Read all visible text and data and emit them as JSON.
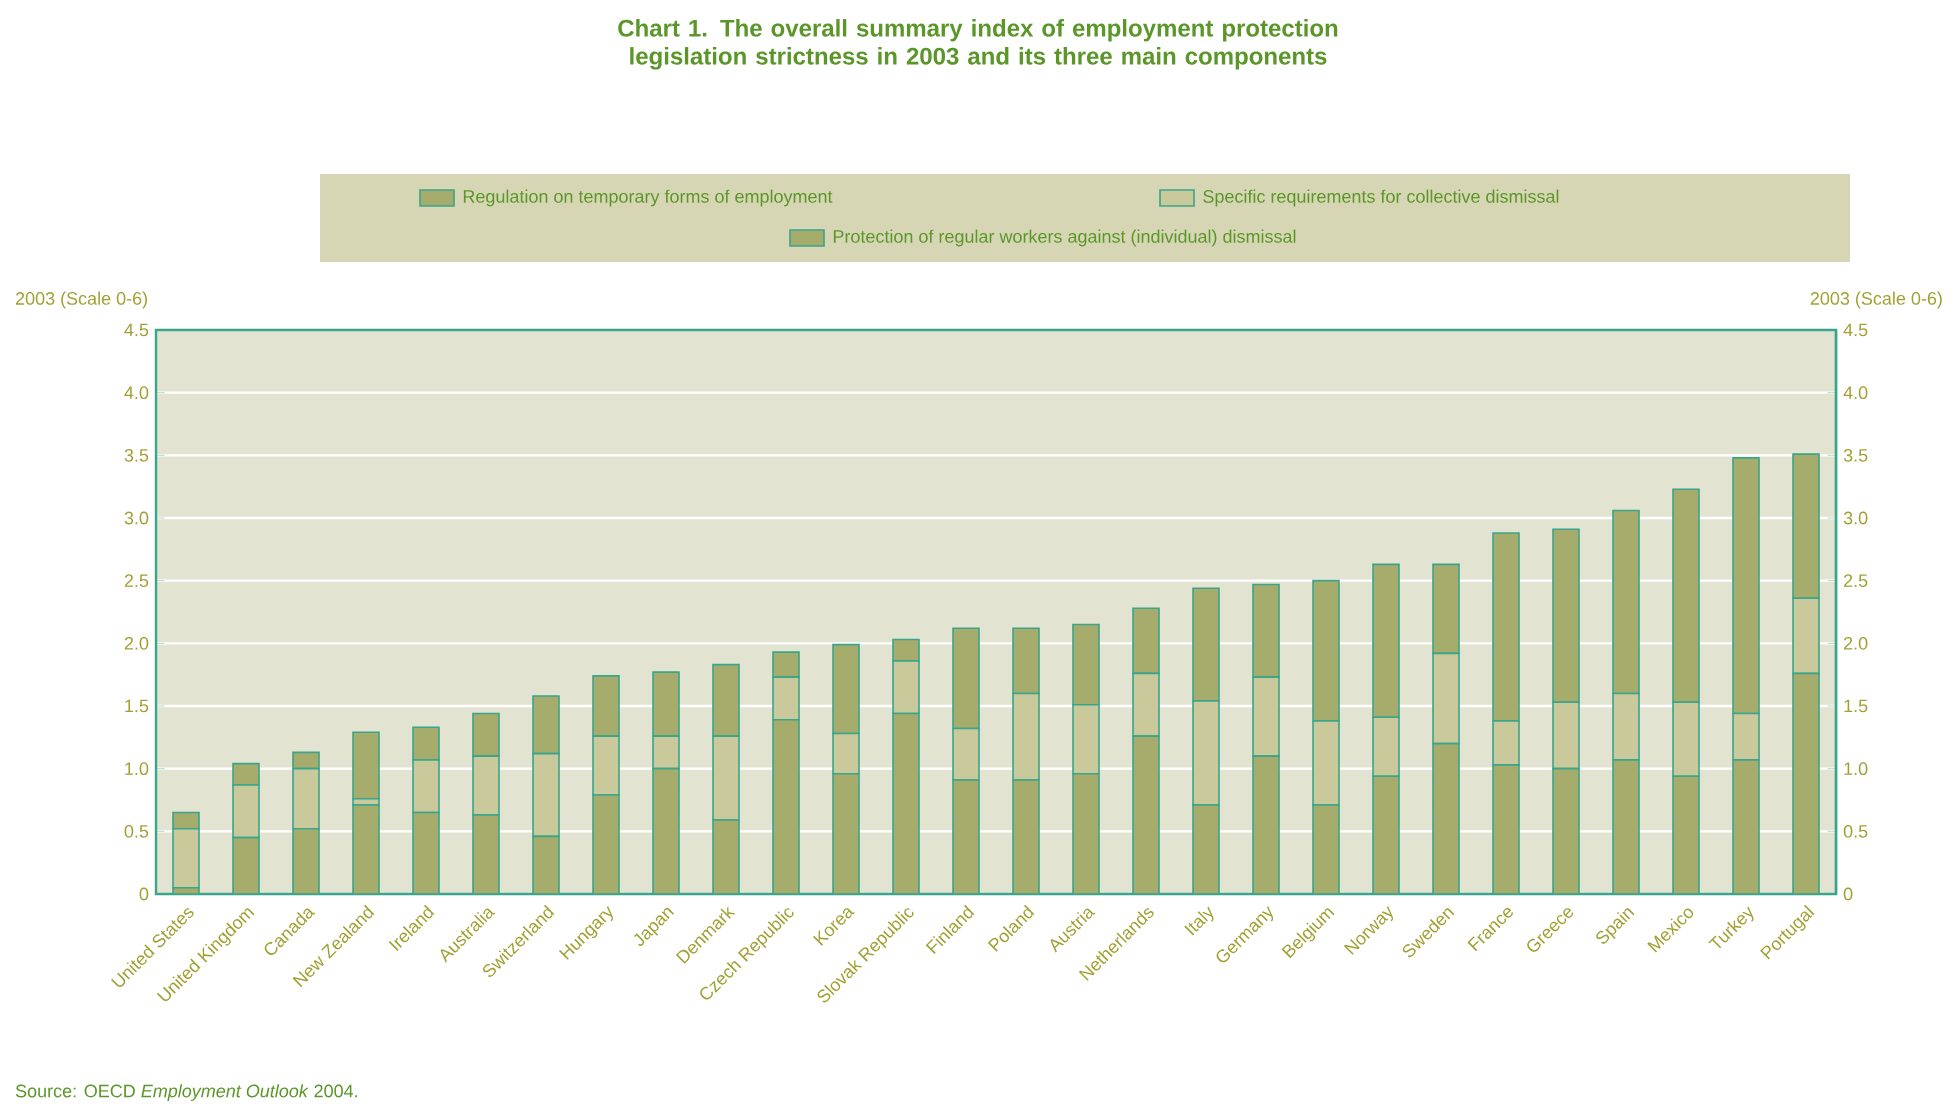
{
  "chart_data": {
    "type": "bar",
    "stacked": true,
    "title": "Chart 1. The overall summary index of employment protection legislation strictness in 2003 and its three main components",
    "ylabel": "2003 (Scale 0-6)",
    "y2label": "2003 (Scale 0-6)",
    "categories": [
      "United States",
      "United Kingdom",
      "Canada",
      "New Zealand",
      "Ireland",
      "Australia",
      "Switzerland",
      "Hungary",
      "Japan",
      "Denmark",
      "Czech Republic",
      "Korea",
      "Slovak Republic",
      "Finland",
      "Poland",
      "Austria",
      "Netherlands",
      "Italy",
      "Germany",
      "Belgium",
      "Norway",
      "Sweden",
      "France",
      "Greece",
      "Spain",
      "Mexico",
      "Turkey",
      "Portugal"
    ],
    "series": [
      {
        "name": "Protection of regular workers against (individual) dismissal",
        "color": "#a6ac6c",
        "values": [
          0.05,
          0.45,
          0.52,
          0.71,
          0.65,
          0.63,
          0.46,
          0.79,
          1.0,
          0.59,
          1.39,
          0.96,
          1.44,
          0.91,
          0.91,
          0.96,
          1.26,
          0.71,
          1.1,
          0.71,
          0.94,
          1.2,
          1.03,
          1.0,
          1.07,
          0.94,
          1.07,
          1.76
        ]
      },
      {
        "name": "Specific requirements for collective dismissal",
        "color": "#cac99c",
        "values": [
          0.47,
          0.42,
          0.48,
          0.05,
          0.42,
          0.47,
          0.66,
          0.47,
          0.26,
          0.67,
          0.34,
          0.32,
          0.42,
          0.41,
          0.69,
          0.55,
          0.5,
          0.83,
          0.63,
          0.67,
          0.47,
          0.72,
          0.35,
          0.53,
          0.53,
          0.59,
          0.37,
          0.6
        ]
      },
      {
        "name": "Regulation on temporary forms of employment",
        "color": "#a6ac6c",
        "values": [
          0.13,
          0.17,
          0.13,
          0.53,
          0.26,
          0.34,
          0.46,
          0.48,
          0.51,
          0.57,
          0.2,
          0.71,
          0.17,
          0.8,
          0.52,
          0.64,
          0.52,
          0.9,
          0.74,
          1.12,
          1.22,
          0.71,
          1.5,
          1.38,
          1.46,
          1.7,
          2.04,
          1.15
        ]
      }
    ],
    "ylim": [
      0,
      4.5
    ],
    "yticks": [
      0,
      0.5,
      {
        "value": 1,
        "label": "1.0"
      },
      1.5,
      {
        "value": 2,
        "label": "2.0"
      },
      2.5,
      {
        "value": 3,
        "label": "3.0"
      },
      3.5,
      {
        "value": 4,
        "label": "4.0"
      },
      4.5
    ],
    "y2lim": [
      0,
      4.5
    ],
    "y2ticks": [
      0,
      0.5,
      {
        "value": 1,
        "label": "1.0"
      },
      1.5,
      {
        "value": 2,
        "label": "2.0"
      },
      2.5,
      {
        "value": 3,
        "label": "3.0"
      },
      3.5,
      {
        "value": 4,
        "label": "4.0"
      },
      4.5
    ],
    "grid": "y",
    "legend": "top",
    "annotations": [
      "Source: OECD *Employment Outlook* 2004."
    ]
  }
}
